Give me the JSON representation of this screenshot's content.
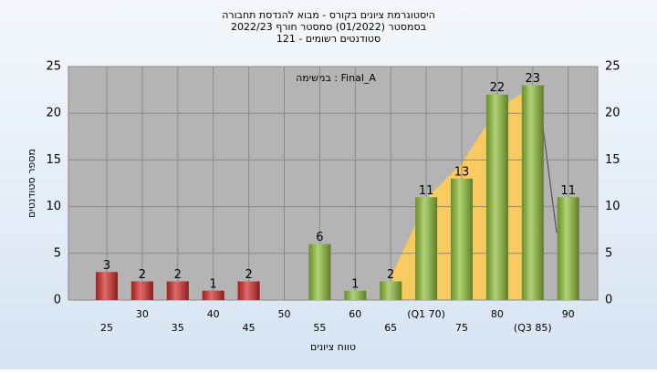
{
  "chart_data": {
    "type": "bar",
    "title": [
      "היסטוגרמת ציונים בקורס - מבוא להנדסת תחבורה",
      "בסמסטר  (01/2022)  סמסטר חורף 2022/23",
      "סטודנטים רשומים - 121"
    ],
    "annotation": "במשימה : Final_A",
    "xlabel": "טווח ציונים",
    "ylabel": "מספר סטודנטים",
    "categories": [
      "25",
      "30",
      "35",
      "40",
      "45",
      "50",
      "55",
      "60",
      "65",
      "(Q1 70)",
      "75",
      "80",
      "(Q3 85)",
      "90"
    ],
    "values": [
      3,
      2,
      2,
      1,
      2,
      null,
      6,
      1,
      2,
      11,
      13,
      22,
      23,
      11
    ],
    "colors": [
      "#d42a2a",
      "#d42a2a",
      "#d42a2a",
      "#d42a2a",
      "#d42a2a",
      "#d42a2a",
      "#8fbf3a",
      "#8fbf3a",
      "#8fbf3a",
      "#8fbf3a",
      "#8fbf3a",
      "#8fbf3a",
      "#8fbf3a",
      "#8fbf3a"
    ],
    "ylim": [
      0,
      25
    ],
    "yticks": [
      0,
      5,
      10,
      15,
      20,
      25
    ],
    "grid": true
  }
}
